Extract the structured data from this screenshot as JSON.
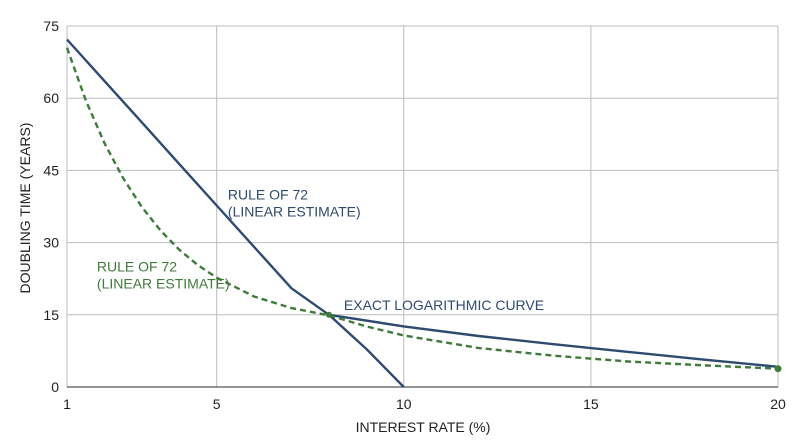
{
  "chart_data": {
    "type": "line",
    "title": "",
    "xlabel": "INTEREST RATE (%)",
    "ylabel": "DOUBLING TIME (YEARS)",
    "xlim": [
      1,
      20
    ],
    "ylim": [
      0,
      75
    ],
    "x_ticks": [
      1,
      5,
      10,
      15,
      20
    ],
    "y_ticks": [
      0,
      15,
      30,
      45,
      60,
      75
    ],
    "grid": true,
    "colors": {
      "navy": "#2d4a6f",
      "green": "#3e7a3a"
    },
    "series": [
      {
        "color": "navy",
        "style": "solid",
        "x": [
          1,
          2,
          3,
          4,
          5,
          6,
          7,
          8,
          9,
          10
        ],
        "y": [
          72.2,
          63.6,
          55.0,
          46.3,
          37.7,
          29.1,
          20.5,
          15.0,
          7.9,
          0.0
        ]
      },
      {
        "color": "navy",
        "style": "solid",
        "x": [
          8,
          10,
          12,
          14,
          16,
          18,
          20
        ],
        "y": [
          15.0,
          12.6,
          10.6,
          8.9,
          7.3,
          5.7,
          4.2
        ]
      },
      {
        "color": "green",
        "style": "dashed",
        "x": [
          1,
          1.5,
          2,
          2.5,
          3,
          3.5,
          4,
          4.5,
          5,
          6,
          7,
          8,
          9,
          10,
          12,
          14,
          16,
          18,
          20
        ],
        "y": [
          70.5,
          59.6,
          50.7,
          43.4,
          37.4,
          32.5,
          28.5,
          25.3,
          22.7,
          18.8,
          16.4,
          14.9,
          12.6,
          10.7,
          8.1,
          6.5,
          5.3,
          4.5,
          3.8
        ],
        "end_marker": true
      }
    ],
    "annotations": [
      {
        "lines": [
          "RULE OF 72",
          "(LINEAR ESTIMATE)"
        ],
        "color": "navy",
        "x": 5.3,
        "y": 40
      },
      {
        "lines": [
          "RULE OF 72",
          "(LINEAR ESTIMATE)"
        ],
        "color": "green",
        "x": 1.8,
        "y": 25
      },
      {
        "lines": [
          "EXACT LOGARITHMIC CURVE"
        ],
        "color": "navy",
        "x": 8.4,
        "y": 17
      }
    ]
  }
}
